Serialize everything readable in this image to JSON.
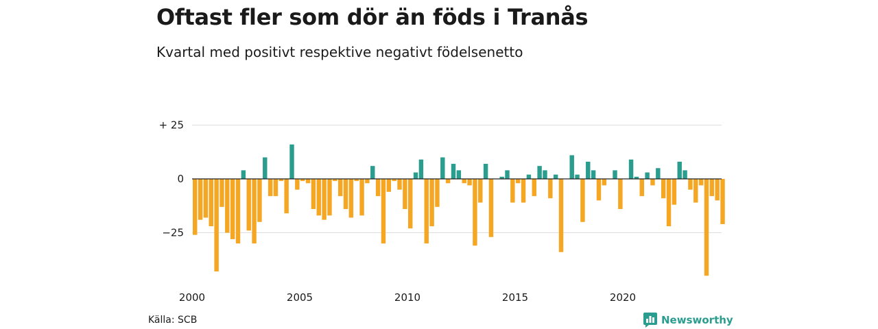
{
  "title": "Oftast fler som dör än föds i Tranås",
  "subtitle": "Kvartal med positivt respektive negativt födelsenetto",
  "source": "Källa: SCB",
  "brand": "Newsworthy",
  "colors": {
    "positive": "#2a9d8f",
    "negative": "#f5a623",
    "grid": "#dddddd",
    "zero": "#222222",
    "brand": "#2a9d8f"
  },
  "icons": {
    "logo": "newsworthy-chart-icon"
  },
  "chart_data": {
    "type": "bar",
    "x_start": 2000.0,
    "x_step": 0.25,
    "x_ticks": [
      2000,
      2005,
      2010,
      2015,
      2020
    ],
    "x_tick_labels": [
      "2000",
      "2005",
      "2010",
      "2015",
      "2020"
    ],
    "y_ticks": [
      25,
      0,
      -25
    ],
    "y_tick_labels": [
      "+ 25",
      "0",
      "−25"
    ],
    "ylim": [
      -45,
      28
    ],
    "grid": true,
    "legend": "none",
    "xlabel": "",
    "ylabel": "",
    "values": [
      -26,
      -19,
      -18,
      -22,
      -43,
      -13,
      -25,
      -28,
      -30,
      4,
      -24,
      -30,
      -20,
      10,
      -8,
      -8,
      -1,
      -16,
      16,
      -5,
      -1,
      -2,
      -14,
      -17,
      -19,
      -17,
      -1,
      -8,
      -14,
      -18,
      -1,
      -17,
      -2,
      6,
      -8,
      -30,
      -6,
      -1,
      -5,
      -14,
      -23,
      3,
      9,
      -30,
      -22,
      -13,
      10,
      -2,
      7,
      4,
      -2,
      -3,
      -31,
      -11,
      7,
      -27,
      0,
      1,
      4,
      -11,
      -2,
      -11,
      2,
      -8,
      6,
      4,
      -9,
      2,
      -34,
      0,
      11,
      2,
      -20,
      8,
      4,
      -10,
      -3,
      0,
      4,
      -14,
      0,
      9,
      1,
      -8,
      3,
      -3,
      5,
      -9,
      -22,
      -12,
      8,
      4,
      -5,
      -11,
      -3,
      -45,
      -8,
      -10,
      -21
    ]
  }
}
